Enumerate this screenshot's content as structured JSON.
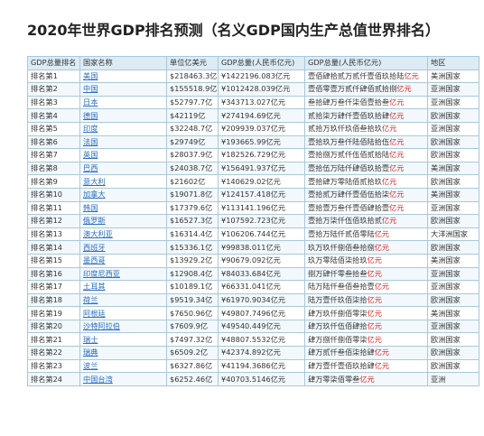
{
  "title": "2020年世界GDP排名预测（名义GDP国内生产总值世界排名）",
  "headers": [
    "GDP总量排名",
    "国家名称",
    "单位亿美元",
    "GDP总量(人民币亿元)",
    "GDP总量(人民币亿元)",
    "地区"
  ],
  "rows": [
    {
      "rank": "排名第1",
      "country": "美国",
      "usd": "$218463.3亿",
      "rmb": "¥1422196.083亿元",
      "cn": "壹佰肆拾贰万贰仟壹佰玖拾陆",
      "unit": "亿元",
      "region": "美洲国家"
    },
    {
      "rank": "排名第2",
      "country": "中国",
      "usd": "$155518.9亿",
      "rmb": "¥1012428.039亿元",
      "cn": "壹佰零壹万贰仟肆佰贰拾捌",
      "unit": "亿元",
      "region": "亚洲国家"
    },
    {
      "rank": "排名第3",
      "country": "日本",
      "usd": "$52797.7亿",
      "rmb": "¥343713.027亿元",
      "cn": "叁拾肆万叁仟柒佰壹拾叁",
      "unit": "亿元",
      "region": "亚洲国家"
    },
    {
      "rank": "排名第4",
      "country": "德国",
      "usd": "$42119亿",
      "rmb": "¥274194.69亿元",
      "cn": "贰拾柒万肆仟壹佰玖拾肆",
      "unit": "亿元",
      "region": "欧洲国家"
    },
    {
      "rank": "排名第5",
      "country": "印度",
      "usd": "$32248.7亿",
      "rmb": "¥209939.037亿元",
      "cn": "贰拾万玖仟玖佰叁拾玖",
      "unit": "亿元",
      "region": "亚洲国家"
    },
    {
      "rank": "排名第6",
      "country": "法国",
      "usd": "$29749亿",
      "rmb": "¥193665.99亿元",
      "cn": "壹拾玖万叁仟陆佰陆拾伍",
      "unit": "亿元",
      "region": "欧洲国家"
    },
    {
      "rank": "排名第7",
      "country": "英国",
      "usd": "$28037.9亿",
      "rmb": "¥182526.729亿元",
      "cn": "壹拾捌万贰仟伍佰贰拾陆",
      "unit": "亿元",
      "region": "欧洲国家"
    },
    {
      "rank": "排名第8",
      "country": "巴西",
      "usd": "$24038.7亿",
      "rmb": "¥156491.937亿元",
      "cn": "壹拾伍万陆仟肆佰玖拾壹",
      "unit": "亿元",
      "region": "美洲国家"
    },
    {
      "rank": "排名第9",
      "country": "意大利",
      "usd": "$21602亿",
      "rmb": "¥140629.02亿元",
      "cn": "壹拾肆万零陆佰贰拾玖",
      "unit": "亿元",
      "region": "欧洲国家"
    },
    {
      "rank": "排名第10",
      "country": "加拿大",
      "usd": "$19071.8亿",
      "rmb": "¥124157.418亿元",
      "cn": "壹拾贰万肆仟壹佰伍拾柒",
      "unit": "亿元",
      "region": "美洲国家"
    },
    {
      "rank": "排名第11",
      "country": "韩国",
      "usd": "$17379.6亿",
      "rmb": "¥113141.196亿元",
      "cn": "壹拾壹万叁仟壹佰肆拾壹",
      "unit": "亿元",
      "region": "亚洲国家"
    },
    {
      "rank": "排名第12",
      "country": "俄罗斯",
      "usd": "$16527.3亿",
      "rmb": "¥107592.723亿元",
      "cn": "壹拾万柒仟伍佰玖拾贰",
      "unit": "亿元",
      "region": "欧洲国家"
    },
    {
      "rank": "排名第13",
      "country": "澳大利亚",
      "usd": "$16314.4亿",
      "rmb": "¥106206.744亿元",
      "cn": "壹拾万陆仟贰佰零陆",
      "unit": "亿元",
      "region": "大洋洲国家"
    },
    {
      "rank": "排名第14",
      "country": "西班牙",
      "usd": "$15336.1亿",
      "rmb": "¥99838.011亿元",
      "cn": "玖万玖仟捌佰叁拾捌",
      "unit": "亿元",
      "region": "欧洲国家"
    },
    {
      "rank": "排名第15",
      "country": "墨西哥",
      "usd": "$13929.2亿",
      "rmb": "¥90679.092亿元",
      "cn": "玖万零陆佰柒拾玖",
      "unit": "亿元",
      "region": "美洲国家"
    },
    {
      "rank": "排名第16",
      "country": "印度尼西亚",
      "usd": "$12908.4亿",
      "rmb": "¥84033.684亿元",
      "cn": "捌万肆仟零叁拾叁",
      "unit": "亿元",
      "region": "亚洲国家"
    },
    {
      "rank": "排名第17",
      "country": "土耳其",
      "usd": "$10189.1亿",
      "rmb": "¥66331.041亿元",
      "cn": "陆万陆仟叁佰叁拾壹",
      "unit": "亿元",
      "region": "亚洲国家"
    },
    {
      "rank": "排名第18",
      "country": "荷兰",
      "usd": "$9519.34亿",
      "rmb": "¥61970.9034亿元",
      "cn": "陆万壹仟玖佰柒拾",
      "unit": "亿元",
      "region": "欧洲国家"
    },
    {
      "rank": "排名第19",
      "country": "阿根廷",
      "usd": "$7650.96亿",
      "rmb": "¥49807.7496亿元",
      "cn": "肆万玖仟捌佰零柒",
      "unit": "亿元",
      "region": "美洲国家"
    },
    {
      "rank": "排名第20",
      "country": "沙特阿拉伯",
      "usd": "$7609.9亿",
      "rmb": "¥49540.449亿元",
      "cn": "肆万玖仟伍佰肆拾",
      "unit": "亿元",
      "region": "亚洲国家"
    },
    {
      "rank": "排名第21",
      "country": "瑞士",
      "usd": "$7497.32亿",
      "rmb": "¥48807.5532亿元",
      "cn": "肆万捌仟捌佰零柒",
      "unit": "亿元",
      "region": "欧洲国家"
    },
    {
      "rank": "排名第22",
      "country": "瑞典",
      "usd": "$6509.2亿",
      "rmb": "¥42374.892亿元",
      "cn": "肆万贰仟叁佰柒拾肆",
      "unit": "亿元",
      "region": "欧洲国家"
    },
    {
      "rank": "排名第23",
      "country": "波兰",
      "usd": "$6327.86亿",
      "rmb": "¥41194.3686亿元",
      "cn": "肆万壹仟壹佰玖拾肆",
      "unit": "亿元",
      "region": "欧洲国家"
    },
    {
      "rank": "排名第24",
      "country": "中国台湾",
      "usd": "$6252.46亿",
      "rmb": "¥40703.5146亿元",
      "cn": "肆万零柒佰零叁",
      "unit": "亿元",
      "region": "亚洲"
    }
  ]
}
